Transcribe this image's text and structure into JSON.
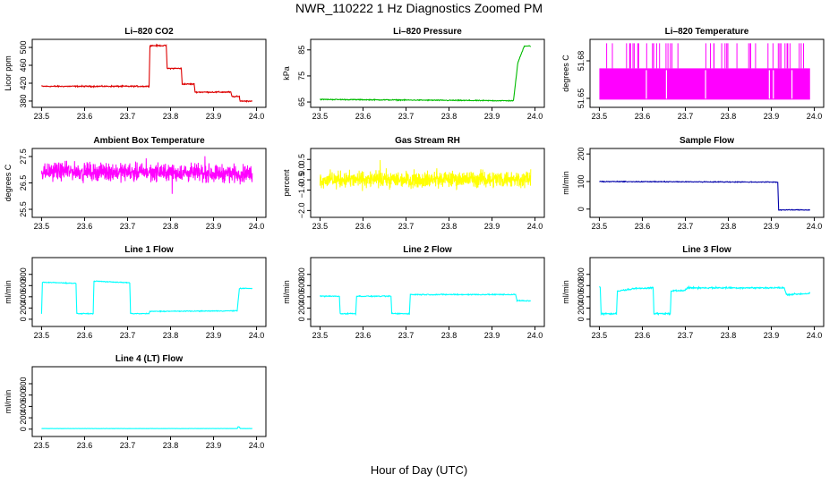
{
  "page": {
    "title": "NWR_110222  1 Hz Diagnostics Zoomed PM",
    "xlabel": "Hour of Day (UTC)"
  },
  "chart_data": [
    {
      "id": "li820-co2",
      "type": "line",
      "title": "Li–820 CO2",
      "ylabel": "Licor ppm",
      "color": "#dd0000",
      "style": "line",
      "xlim": [
        23.5,
        24.0
      ],
      "ylim": [
        372,
        512
      ],
      "xticks": [
        "23.5",
        "23.6",
        "23.7",
        "23.8",
        "23.9",
        "24.0"
      ],
      "yticks": [
        380,
        420,
        460,
        500
      ],
      "ytick_labels": [
        "380",
        "420",
        "460",
        "500"
      ],
      "x": [
        23.5,
        23.75,
        23.752,
        23.79,
        23.792,
        23.825,
        23.827,
        23.855,
        23.857,
        23.94,
        23.943,
        23.96,
        23.962,
        23.99
      ],
      "y": [
        413,
        413,
        504,
        504,
        453,
        453,
        418,
        418,
        400,
        400,
        390,
        390,
        380,
        380
      ],
      "noise": 1.2
    },
    {
      "id": "li820-pressure",
      "type": "line",
      "title": "Li–820 Pressure",
      "ylabel": "kPa",
      "color": "#00bb00",
      "style": "line",
      "xlim": [
        23.5,
        24.0
      ],
      "ylim": [
        64,
        88
      ],
      "xticks": [
        "23.5",
        "23.6",
        "23.7",
        "23.8",
        "23.9",
        "24.0"
      ],
      "yticks": [
        65,
        75,
        85
      ],
      "ytick_labels": [
        "65",
        "75",
        "85"
      ],
      "x": [
        23.5,
        23.915,
        23.95,
        23.96,
        23.975,
        23.99
      ],
      "y": [
        66,
        65.5,
        65.5,
        80,
        86.5,
        86.5
      ],
      "noise": 0.15
    },
    {
      "id": "li820-temperature",
      "type": "line",
      "title": "Li–820 Temperature",
      "ylabel": "degrees C",
      "color": "#ff00ff",
      "style": "band",
      "xlim": [
        23.5,
        24.0
      ],
      "ylim": [
        51.645,
        51.695
      ],
      "xticks": [
        "23.5",
        "23.6",
        "23.7",
        "23.8",
        "23.9",
        "24.0"
      ],
      "yticks": [
        51.65,
        51.68
      ],
      "ytick_labels": [
        "51.65",
        "51.68"
      ],
      "band_low": 51.649,
      "band_high": 51.674,
      "spike_high": 51.694,
      "x": [
        23.5,
        23.99
      ]
    },
    {
      "id": "ambient-box-temperature",
      "type": "line",
      "title": "Ambient Box Temperature",
      "ylabel": "degrees C",
      "color": "#ff00ff",
      "style": "noisy",
      "xlim": [
        23.5,
        24.0
      ],
      "ylim": [
        25.3,
        27.7
      ],
      "xticks": [
        "23.5",
        "23.6",
        "23.7",
        "23.8",
        "23.9",
        "24.0"
      ],
      "yticks": [
        25.5,
        26.5,
        27.5
      ],
      "ytick_labels": [
        "25.5",
        "26.5",
        "27.5"
      ],
      "x": [
        23.5,
        23.99
      ],
      "y": [
        26.95,
        26.85
      ],
      "noise": 0.28
    },
    {
      "id": "gas-stream-rh",
      "type": "line",
      "title": "Gas Stream RH",
      "ylabel": "percent",
      "color": "#ffff00",
      "style": "noisy",
      "xlim": [
        23.5,
        24.0
      ],
      "ylim": [
        -2.2,
        0.9
      ],
      "xticks": [
        "23.5",
        "23.6",
        "23.7",
        "23.8",
        "23.9",
        "24.0"
      ],
      "yticks": [
        -2.0,
        -1.0,
        -0.5,
        0.0,
        0.5
      ],
      "ytick_labels": [
        "−2.0",
        "−1.0",
        "−0.5",
        "0.0",
        "0.5"
      ],
      "x": [
        23.5,
        23.99
      ],
      "y": [
        -0.5,
        -0.45
      ],
      "noise": 0.35
    },
    {
      "id": "sample-flow",
      "type": "line",
      "title": "Sample Flow",
      "ylabel": "ml/min",
      "color": "#0000aa",
      "style": "line",
      "xlim": [
        23.5,
        24.0
      ],
      "ylim": [
        -20,
        210
      ],
      "xticks": [
        "23.5",
        "23.6",
        "23.7",
        "23.8",
        "23.9",
        "24.0"
      ],
      "yticks": [
        0,
        100,
        200
      ],
      "ytick_labels": [
        "0",
        "100",
        "200"
      ],
      "x": [
        23.5,
        23.915,
        23.917,
        23.99
      ],
      "y": [
        100,
        98,
        -3,
        -3
      ],
      "noise": 1.2
    },
    {
      "id": "line-1-flow",
      "type": "line",
      "title": "Line 1 Flow",
      "ylabel": "ml/min",
      "color": "#00ffff",
      "style": "line",
      "xlim": [
        23.5,
        24.0
      ],
      "ylim": [
        -80,
        1050
      ],
      "xticks": [
        "23.5",
        "23.6",
        "23.7",
        "23.8",
        "23.9",
        "24.0"
      ],
      "yticks": [
        0,
        200,
        400,
        600,
        800
      ],
      "ytick_labels": [
        "0",
        "200",
        "400",
        "600",
        "800"
      ],
      "x": [
        23.5,
        23.502,
        23.58,
        23.582,
        23.62,
        23.622,
        23.705,
        23.707,
        23.75,
        23.752,
        23.955,
        23.96,
        23.99
      ],
      "y": [
        100,
        660,
        640,
        100,
        100,
        680,
        650,
        100,
        100,
        140,
        150,
        550,
        550
      ],
      "noise": 6
    },
    {
      "id": "line-2-flow",
      "type": "line",
      "title": "Line 2 Flow",
      "ylabel": "ml/min",
      "color": "#00ffff",
      "style": "line",
      "xlim": [
        23.5,
        24.0
      ],
      "ylim": [
        -80,
        1050
      ],
      "xticks": [
        "23.5",
        "23.6",
        "23.7",
        "23.8",
        "23.9",
        "24.0"
      ],
      "yticks": [
        0,
        200,
        400,
        600,
        800
      ],
      "ytick_labels": [
        "0",
        "200",
        "400",
        "600",
        "800"
      ],
      "x": [
        23.5,
        23.545,
        23.547,
        23.583,
        23.585,
        23.665,
        23.667,
        23.708,
        23.71,
        23.955,
        23.958,
        23.99
      ],
      "y": [
        410,
        410,
        100,
        100,
        410,
        410,
        100,
        100,
        440,
        440,
        330,
        330
      ],
      "noise": 8
    },
    {
      "id": "line-3-flow",
      "type": "line",
      "title": "Line 3 Flow",
      "ylabel": "ml/min",
      "color": "#00ffff",
      "style": "line",
      "xlim": [
        23.5,
        24.0
      ],
      "ylim": [
        -80,
        1050
      ],
      "xticks": [
        "23.5",
        "23.6",
        "23.7",
        "23.8",
        "23.9",
        "24.0"
      ],
      "yticks": [
        0,
        200,
        400,
        600,
        800
      ],
      "ytick_labels": [
        "0",
        "200",
        "400",
        "600",
        "800"
      ],
      "x": [
        23.5,
        23.502,
        23.504,
        23.54,
        23.542,
        23.585,
        23.625,
        23.627,
        23.665,
        23.667,
        23.7,
        23.705,
        23.93,
        23.935,
        23.99
      ],
      "y": [
        570,
        570,
        100,
        100,
        500,
        550,
        560,
        100,
        100,
        500,
        520,
        560,
        560,
        440,
        460
      ],
      "noise": 12
    },
    {
      "id": "line-4-lt-flow",
      "type": "line",
      "title": "Line 4 (LT) Flow",
      "ylabel": "ml/min",
      "color": "#00ffff",
      "style": "line",
      "xlim": [
        23.5,
        24.0
      ],
      "ylim": [
        -80,
        1050
      ],
      "xticks": [
        "23.5",
        "23.6",
        "23.7",
        "23.8",
        "23.9",
        "24.0"
      ],
      "yticks": [
        0,
        200,
        400,
        600,
        800
      ],
      "ytick_labels": [
        "0",
        "200",
        "400",
        "600",
        "800"
      ],
      "x": [
        23.5,
        23.955,
        23.957,
        23.96,
        23.962,
        23.99
      ],
      "y": [
        10,
        10,
        40,
        40,
        10,
        10
      ],
      "noise": 1.5
    }
  ]
}
